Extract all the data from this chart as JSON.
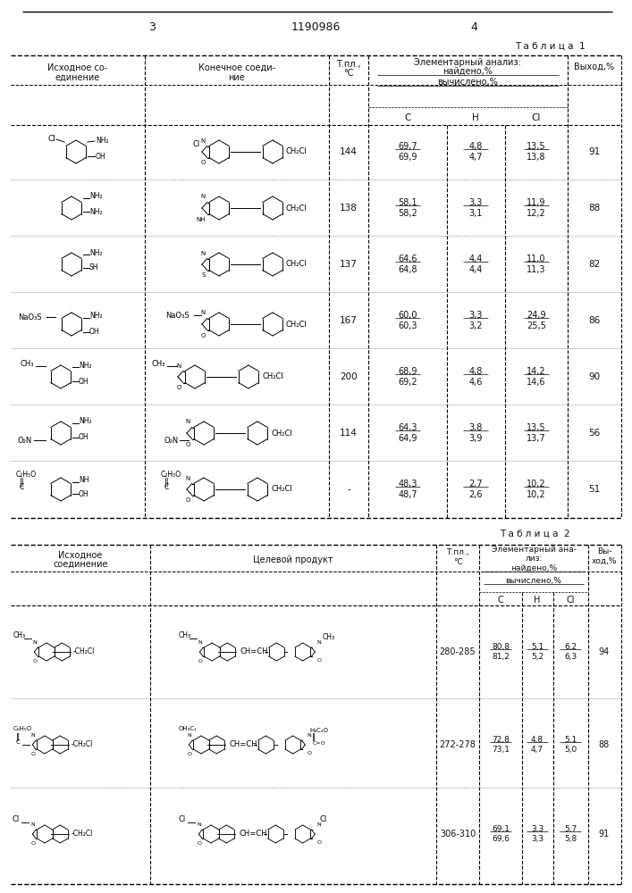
{
  "page_numbers": [
    "3",
    "1190986",
    "4"
  ],
  "table1_title": "Т а б л и ц а  1",
  "table2_title": "Т а б л и ц а  2",
  "table1_rows": [
    {
      "tmp": "144",
      "C": "69,7\n69,9",
      "H": "4,8\n4,7",
      "Cl": "13,5\n13,8",
      "yield": "91"
    },
    {
      "tmp": "138",
      "C": "58,1\n58,2",
      "H": "3,3\n3,1",
      "Cl": "11,9\n12,2",
      "yield": "88"
    },
    {
      "tmp": "137",
      "C": "64,6\n64,8",
      "H": "4,4\n4,4",
      "Cl": "11,0\n11,3",
      "yield": "82"
    },
    {
      "tmp": "167",
      "C": "60,0\n60,3",
      "H": "3,3\n3,2",
      "Cl": "24,9\n25,5",
      "yield": "86"
    },
    {
      "tmp": "200",
      "C": "68,9\n69,2",
      "H": "4,8\n4,6",
      "Cl": "14,2\n14,6",
      "yield": "90"
    },
    {
      "tmp": "114",
      "C": "64,3\n64,9",
      "H": "3,8\n3,9",
      "Cl": "13,5\n13,7",
      "yield": "56"
    },
    {
      "tmp": "-",
      "C": "48,3\n48,7",
      "H": "2,7\n2,6",
      "Cl": "10,2\n10,2",
      "yield": "51"
    }
  ],
  "table2_rows": [
    {
      "tmp": "280-285",
      "C": "80,8\n81,2",
      "H": "5,1\n5,2",
      "Cl": "6,2\n6,3",
      "yield": "94"
    },
    {
      "tmp": "272-278",
      "C": "72,8\n73,1",
      "H": "4,8\n4,7",
      "Cl": "5,1\n5,0",
      "yield": "88"
    },
    {
      "tmp": "306-310",
      "C": "69,1\n69,6",
      "H": "3,3\n3,3",
      "Cl": "5,7\n5,8",
      "yield": "91"
    }
  ]
}
